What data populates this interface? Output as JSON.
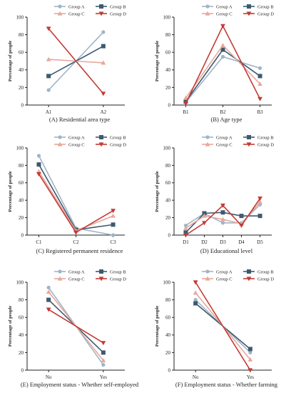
{
  "colors": {
    "Group A": "#9fb5c8",
    "Group B": "#3c5a70",
    "Group C": "#e8a89a",
    "Group D": "#c43a34"
  },
  "chart_data": [
    {
      "type": "line",
      "caption": "(A) Residential area type",
      "ylabel": "Percentage of people",
      "categories": [
        "A1",
        "A2"
      ],
      "ylim": [
        0,
        100
      ],
      "yticks": [
        0,
        20,
        40,
        60,
        80,
        100
      ],
      "legend": [
        "Group A",
        "Group B",
        "Group C",
        "Group D"
      ],
      "series": [
        {
          "name": "Group A",
          "values": [
            17,
            83
          ]
        },
        {
          "name": "Group B",
          "values": [
            33,
            67
          ]
        },
        {
          "name": "Group C",
          "values": [
            52,
            48
          ]
        },
        {
          "name": "Group D",
          "values": [
            87,
            13
          ]
        }
      ]
    },
    {
      "type": "line",
      "caption": "(B) Age type",
      "ylabel": "Percentage of people",
      "categories": [
        "B1",
        "B2",
        "B3"
      ],
      "ylim": [
        0,
        100
      ],
      "yticks": [
        0,
        20,
        40,
        60,
        80,
        100
      ],
      "legend": [
        "Group A",
        "Group B",
        "Group C",
        "Group D"
      ],
      "series": [
        {
          "name": "Group A",
          "values": [
            3,
            55,
            42
          ]
        },
        {
          "name": "Group B",
          "values": [
            4,
            63,
            33
          ]
        },
        {
          "name": "Group C",
          "values": [
            8,
            68,
            24
          ]
        },
        {
          "name": "Group D",
          "values": [
            2,
            90,
            7
          ]
        }
      ]
    },
    {
      "type": "line",
      "caption": "(C) Registered permanent residence",
      "ylabel": "Percentage of people",
      "categories": [
        "C1",
        "C2",
        "C3"
      ],
      "ylim": [
        0,
        100
      ],
      "yticks": [
        0,
        20,
        40,
        60,
        80,
        100
      ],
      "legend": [
        "Group A",
        "Group B",
        "Group C",
        "Group D"
      ],
      "series": [
        {
          "name": "Group A",
          "values": [
            91,
            8,
            0
          ]
        },
        {
          "name": "Group B",
          "values": [
            81,
            6,
            12
          ]
        },
        {
          "name": "Group C",
          "values": [
            73,
            5,
            22
          ]
        },
        {
          "name": "Group D",
          "values": [
            70,
            3,
            28
          ]
        }
      ]
    },
    {
      "type": "line",
      "caption": "(D) Educational level",
      "ylabel": "Percentage of people",
      "categories": [
        "D1",
        "D2",
        "D3",
        "D4",
        "D5"
      ],
      "ylim": [
        0,
        100
      ],
      "yticks": [
        0,
        20,
        40,
        60,
        80,
        100
      ],
      "legend": [
        "Group A",
        "Group B",
        "Group C",
        "Group D"
      ],
      "series": [
        {
          "name": "Group A",
          "values": [
            11,
            25,
            14,
            14,
            35
          ]
        },
        {
          "name": "Group B",
          "values": [
            3,
            25,
            26,
            22,
            22
          ]
        },
        {
          "name": "Group C",
          "values": [
            8,
            22,
            18,
            13,
            38
          ]
        },
        {
          "name": "Group D",
          "values": [
            0,
            14,
            34,
            11,
            42
          ]
        }
      ]
    },
    {
      "type": "line",
      "caption": "(E) Employment status - Whether self-employed",
      "ylabel": "Percentage of people",
      "categories": [
        "No",
        "Yes"
      ],
      "ylim": [
        0,
        100
      ],
      "yticks": [
        0,
        20,
        40,
        60,
        80,
        100
      ],
      "legend": [
        "Group A",
        "Group B",
        "Group C",
        "Group D"
      ],
      "series": [
        {
          "name": "Group A",
          "values": [
            94,
            6
          ]
        },
        {
          "name": "Group B",
          "values": [
            80,
            20
          ]
        },
        {
          "name": "Group C",
          "values": [
            89,
            11
          ]
        },
        {
          "name": "Group D",
          "values": [
            69,
            31
          ]
        }
      ]
    },
    {
      "type": "line",
      "caption": "(F) Employment status - Whether farming",
      "ylabel": "Percentage of people",
      "categories": [
        "No",
        "Yes"
      ],
      "ylim": [
        0,
        100
      ],
      "yticks": [
        0,
        20,
        40,
        60,
        80,
        100
      ],
      "legend": [
        "Group A",
        "Group B",
        "Group C",
        "Group D"
      ],
      "series": [
        {
          "name": "Group A",
          "values": [
            80,
            20
          ]
        },
        {
          "name": "Group B",
          "values": [
            76,
            24
          ]
        },
        {
          "name": "Group C",
          "values": [
            88,
            12
          ]
        },
        {
          "name": "Group D",
          "values": [
            100,
            0
          ]
        }
      ]
    }
  ]
}
